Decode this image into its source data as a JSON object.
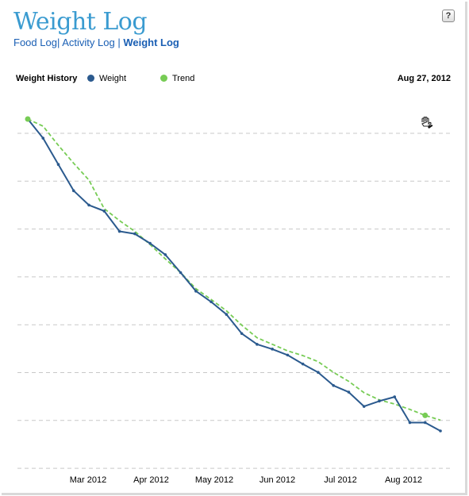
{
  "header": {
    "title": "Weight Log",
    "help_label": "?"
  },
  "nav": {
    "items": [
      {
        "label": "Food Log",
        "active": false
      },
      {
        "label": "Activity Log",
        "active": false
      },
      {
        "label": "Weight Log",
        "active": true
      }
    ]
  },
  "legend": {
    "title": "Weight History",
    "series": [
      {
        "name": "Weight",
        "color": "#2b5a8e"
      },
      {
        "name": "Trend",
        "color": "#77cc55"
      }
    ],
    "date": "Aug 27, 2012"
  },
  "icons": {
    "pan_tool": "hand-icon"
  },
  "chart_data": {
    "type": "line",
    "xlabels": [
      "Mar 2012",
      "Apr 2012",
      "May 2012",
      "Jun 2012",
      "Jul 2012",
      "Aug 2012"
    ],
    "grid": true,
    "series": [
      {
        "name": "Weight",
        "color": "#2b5a8e",
        "values": [
          100,
          96.8,
          92.4,
          88.0,
          85.6,
          84.6,
          81.2,
          80.8,
          79.2,
          77.3,
          74.3,
          71.2,
          69.4,
          67.3,
          64.1,
          62.3,
          61.5,
          60.5,
          59.0,
          57.6,
          55.4,
          54.3,
          51.9,
          52.8,
          53.5,
          49.2,
          49.2,
          47.8
        ]
      },
      {
        "name": "Trend",
        "color": "#77cc55",
        "values": [
          100,
          98.8,
          95.6,
          92.6,
          89.8,
          85.0,
          83.0,
          81.2,
          79.0,
          76.6,
          74.3,
          71.6,
          69.8,
          67.9,
          65.5,
          63.4,
          62.3,
          61.2,
          60.4,
          59.4,
          57.6,
          56.1,
          54.2,
          53.0,
          52.3,
          51.4,
          50.4,
          49.6
        ]
      }
    ]
  }
}
